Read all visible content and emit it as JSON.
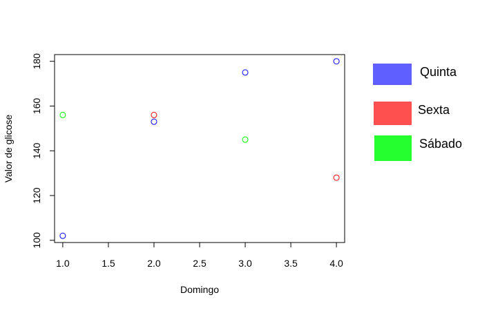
{
  "chart_data": {
    "type": "scatter",
    "title": "",
    "xlabel": "Domingo",
    "ylabel": "Valor de glicose",
    "xlim": [
      0.91,
      4.09
    ],
    "ylim": [
      99.0,
      183.0
    ],
    "x_ticks": [
      "1.0",
      "1.5",
      "2.0",
      "2.5",
      "3.0",
      "3.5",
      "4.0"
    ],
    "y_ticks": [
      "100",
      "120",
      "140",
      "160",
      "180"
    ],
    "grid": false,
    "legend_position": "right",
    "series": [
      {
        "name": "Quinta",
        "color": "#0000FF",
        "legend_color": "#5F5FFF",
        "x": [
          1,
          2,
          3,
          4
        ],
        "y": [
          102,
          153,
          175,
          180
        ]
      },
      {
        "name": "Sexta",
        "color": "#FF0000",
        "legend_color": "#FF5050",
        "x": [
          2,
          4
        ],
        "y": [
          156,
          128
        ]
      },
      {
        "name": "Sábado",
        "color": "#00FF00",
        "legend_color": "#26FF2E",
        "x": [
          1,
          3
        ],
        "y": [
          156,
          145
        ]
      }
    ]
  }
}
